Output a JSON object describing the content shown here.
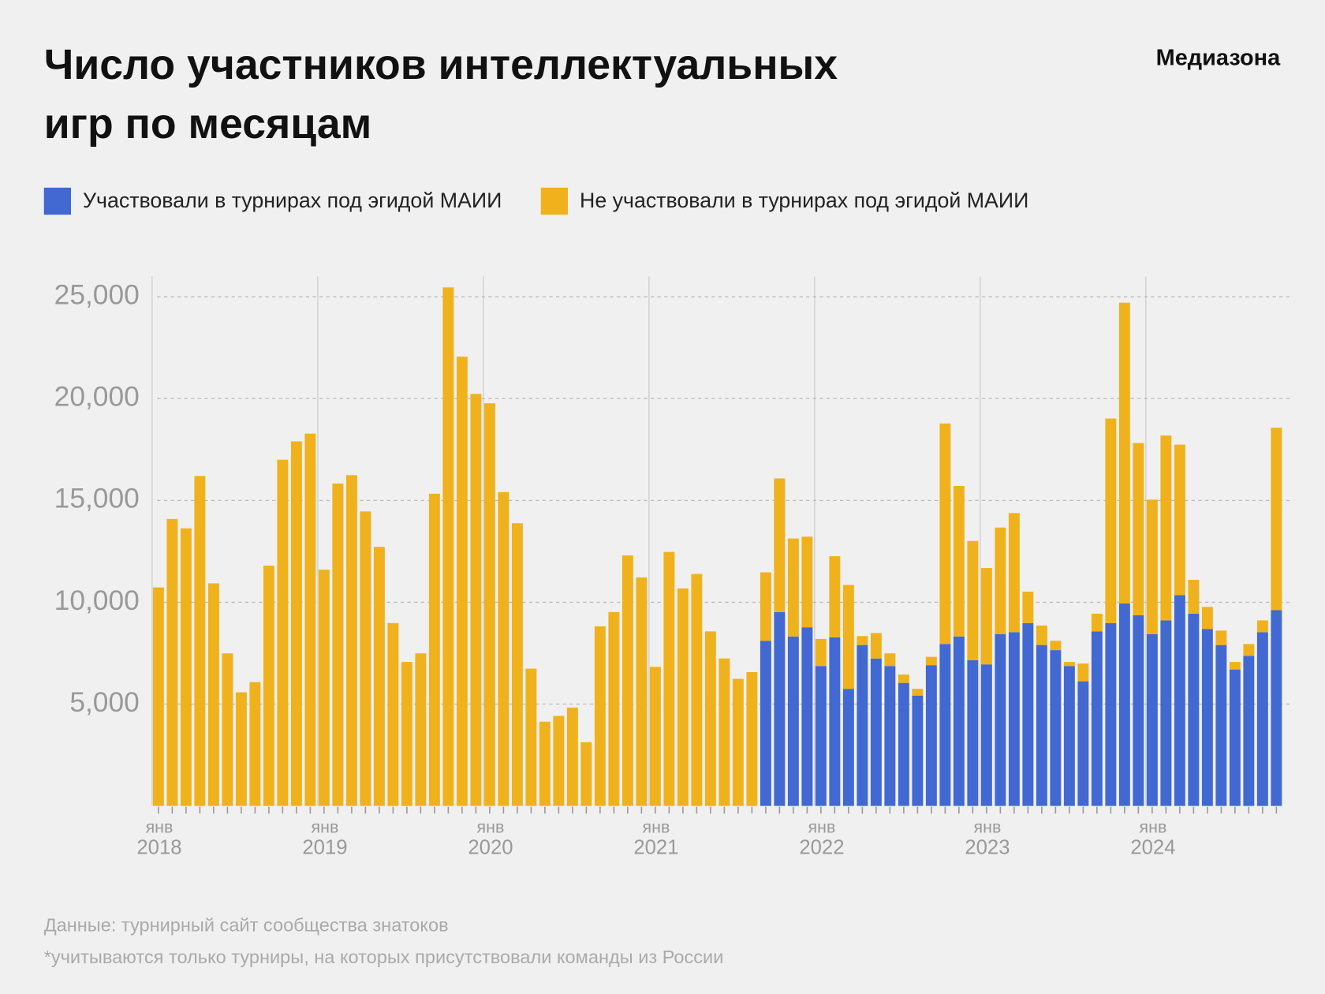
{
  "chart_data": {
    "type": "stacked_bar",
    "title": [
      "Число участников интеллектуальных",
      "игр по месяцам"
    ],
    "source_brand": "Медиазона",
    "notes": [
      "Данные: турнирный сайт сообщества знатоков",
      "*учитываются только турниры, на которых присутствовали команды из России"
    ],
    "categories": [
      {
        "month": "янв",
        "year": "2018"
      },
      null,
      null,
      null,
      null,
      null,
      null,
      null,
      null,
      null,
      null,
      null,
      {
        "month": "янв",
        "year": "2019"
      },
      null,
      null,
      null,
      null,
      null,
      null,
      null,
      null,
      null,
      null,
      null,
      {
        "month": "янв",
        "year": "2020"
      },
      null,
      null,
      null,
      null,
      null,
      null,
      null,
      null,
      null,
      null,
      null,
      {
        "month": "янв",
        "year": "2021"
      },
      null,
      null,
      null,
      null,
      null,
      null,
      null,
      null,
      null,
      null,
      null,
      {
        "month": "янв",
        "year": "2022"
      },
      null,
      null,
      null,
      null,
      null,
      null,
      null,
      null,
      null,
      null,
      null,
      {
        "month": "янв",
        "year": "2023"
      },
      null,
      null,
      null,
      null,
      null,
      null,
      null,
      null,
      null,
      null,
      null,
      {
        "month": "янв",
        "year": "2024"
      },
      null,
      null,
      null,
      null,
      null,
      null,
      null,
      null,
      null
    ],
    "series": [
      {
        "name": "Участвовали в турнирах под эгидой МАИИ",
        "color": "#4169d1",
        "values": [
          null,
          null,
          null,
          null,
          null,
          null,
          null,
          null,
          null,
          null,
          null,
          null,
          null,
          null,
          null,
          null,
          null,
          null,
          null,
          null,
          null,
          null,
          null,
          null,
          null,
          null,
          null,
          null,
          null,
          null,
          null,
          null,
          null,
          null,
          null,
          null,
          null,
          null,
          null,
          null,
          null,
          null,
          null,
          null,
          8110,
          9520,
          8320,
          8770,
          6870,
          8280,
          5750,
          7900,
          7240,
          6870,
          6040,
          5420,
          6910,
          7950,
          8320,
          7160,
          6950,
          8440,
          8530,
          8980,
          7900,
          7650,
          6870,
          6120,
          8570,
          8980,
          9940,
          9360,
          8440,
          9110,
          10350,
          9440,
          8690,
          7900,
          6700,
          7370,
          8530,
          9610
        ]
      },
      {
        "name": "Не участвовали в турнирах под эгидой МАИИ",
        "color": "#f0b21c",
        "values": [
          10730,
          14090,
          13630,
          16200,
          10930,
          7490,
          5580,
          6080,
          11800,
          17000,
          17900,
          18280,
          11600,
          15830,
          16240,
          14460,
          12720,
          8980,
          7070,
          7490,
          15330,
          25460,
          22060,
          20230,
          19770,
          15410,
          13880,
          6740,
          4140,
          4420,
          4830,
          3130,
          8820,
          9520,
          12300,
          11220,
          6830,
          12470,
          10680,
          11390,
          8570,
          7240,
          6240,
          6570,
          3360,
          6560,
          4810,
          4450,
          1330,
          3980,
          5100,
          440,
          1250,
          620,
          410,
          330,
          410,
          10830,
          7390,
          5850,
          4730,
          5230,
          5850,
          1540,
          960,
          460,
          200,
          870,
          870,
          10040,
          14770,
          8460,
          6600,
          9080,
          7390,
          1660,
          1080,
          710,
          370,
          580,
          580,
          8960
        ]
      }
    ],
    "ylim": [
      0,
      26000
    ],
    "yticks": [
      {
        "value": 5000,
        "label": "5,000"
      },
      {
        "value": 10000,
        "label": "10,000"
      },
      {
        "value": 15000,
        "label": "15,000"
      },
      {
        "value": 20000,
        "label": "20,000"
      },
      {
        "value": 25000,
        "label": "25,000"
      }
    ],
    "grid": true,
    "legend": "top"
  }
}
